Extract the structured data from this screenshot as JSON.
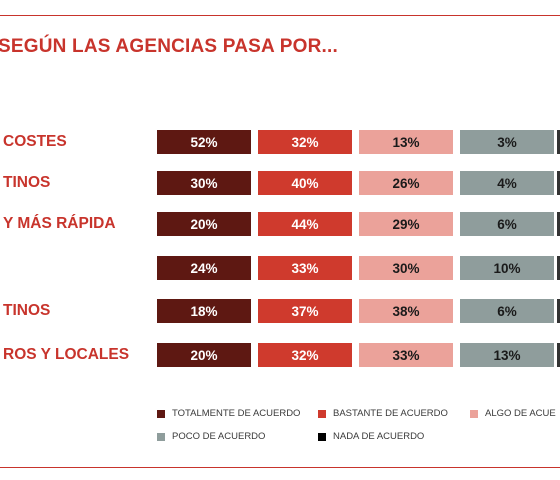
{
  "chart_data": {
    "type": "table",
    "title": "SEGÚN LAS AGENCIAS PASA POR...",
    "categories": [
      "COSTES",
      "TINOS",
      "Y MÁS RÁPIDA",
      "",
      "TINOS",
      "ROS Y LOCALES"
    ],
    "series": [
      {
        "name": "TOTALMENTE DE ACUERDO",
        "color": "#5e1812",
        "text_color": "#ffffff",
        "values": [
          52,
          30,
          20,
          24,
          18,
          20
        ]
      },
      {
        "name": "BASTANTE DE ACUERDO",
        "color": "#cf3a2d",
        "text_color": "#ffffff",
        "values": [
          32,
          40,
          44,
          33,
          37,
          32
        ]
      },
      {
        "name": "ALGO DE ACUE",
        "color": "#eba29a",
        "text_color": "#1a1a1a",
        "values": [
          13,
          26,
          29,
          30,
          38,
          33
        ]
      },
      {
        "name": "POCO DE ACUERDO",
        "color": "#8f9d9c",
        "text_color": "#1a1a1a",
        "values": [
          3,
          4,
          6,
          10,
          6,
          13
        ]
      },
      {
        "name": "NADA DE ACUERDO",
        "color": "#000000",
        "text_color": "#ffffff",
        "values": [
          null,
          null,
          null,
          null,
          null,
          null
        ]
      }
    ],
    "value_suffix": "%",
    "legend_position": "bottom"
  }
}
